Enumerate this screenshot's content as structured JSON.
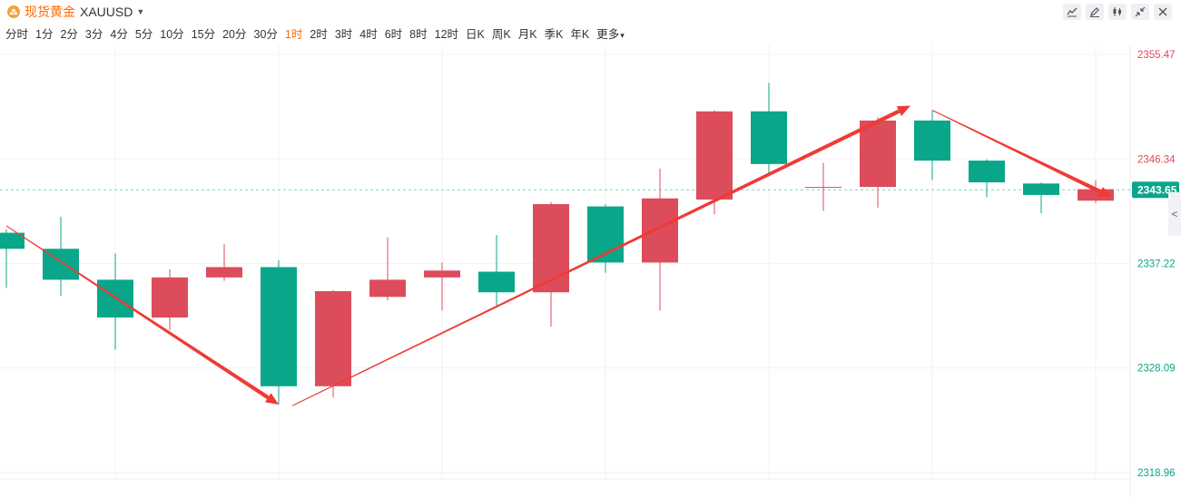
{
  "symbol": {
    "name": "现货黄金",
    "code": "XAUUSD",
    "icon": "gold-coin-icon",
    "dropdown_icon": "caret-down-icon"
  },
  "intervals": [
    "分时",
    "1分",
    "2分",
    "3分",
    "4分",
    "5分",
    "10分",
    "15分",
    "20分",
    "30分",
    "1时",
    "2时",
    "3时",
    "4时",
    "6时",
    "8时",
    "12时",
    "日K",
    "周K",
    "月K",
    "季K",
    "年K",
    "更多"
  ],
  "active_interval": "1时",
  "toolbar": [
    "line-chart-icon",
    "draw-pen-icon",
    "candlestick-icon",
    "collapse-icon",
    "close-icon"
  ],
  "colors": {
    "up": "#dc4c5a",
    "down": "#0aa68a",
    "arrow": "#f03a35",
    "accent": "#ff6a00",
    "last_price_bg": "#0aa68a"
  },
  "chart_data": {
    "type": "candlestick",
    "y_axis_ticks": [
      "2355.47",
      "2346.34",
      "2337.22",
      "2328.09",
      "2318.96"
    ],
    "ylim": [
      2318.96,
      2355.47
    ],
    "last_price": "2343.65",
    "candles": [
      {
        "open": 2339.9,
        "close": 2338.5,
        "high": 2340.2,
        "low": 2335.1
      },
      {
        "open": 2338.5,
        "close": 2335.8,
        "high": 2341.3,
        "low": 2334.4
      },
      {
        "open": 2335.8,
        "close": 2332.5,
        "high": 2338.1,
        "low": 2329.7
      },
      {
        "open": 2332.5,
        "close": 2336.0,
        "high": 2336.7,
        "low": 2331.4
      },
      {
        "open": 2336.0,
        "close": 2336.9,
        "high": 2338.9,
        "low": 2335.7
      },
      {
        "open": 2336.9,
        "close": 2326.5,
        "high": 2337.5,
        "low": 2324.9
      },
      {
        "open": 2326.5,
        "close": 2334.8,
        "high": 2334.9,
        "low": 2325.5
      },
      {
        "open": 2334.3,
        "close": 2335.8,
        "high": 2339.5,
        "low": 2334.0
      },
      {
        "open": 2336.0,
        "close": 2336.6,
        "high": 2337.3,
        "low": 2333.1
      },
      {
        "open": 2336.5,
        "close": 2334.7,
        "high": 2339.7,
        "low": 2333.4
      },
      {
        "open": 2334.7,
        "close": 2342.4,
        "high": 2342.6,
        "low": 2331.7
      },
      {
        "open": 2342.2,
        "close": 2337.3,
        "high": 2342.4,
        "low": 2336.4
      },
      {
        "open": 2337.3,
        "close": 2342.9,
        "high": 2345.5,
        "low": 2333.1
      },
      {
        "open": 2342.8,
        "close": 2350.5,
        "high": 2350.6,
        "low": 2341.5
      },
      {
        "open": 2350.5,
        "close": 2345.9,
        "high": 2353.0,
        "low": 2344.8
      },
      {
        "open": 2343.9,
        "close": 2343.9,
        "high": 2346.0,
        "low": 2341.8
      },
      {
        "open": 2343.9,
        "close": 2349.7,
        "high": 2350.0,
        "low": 2342.1
      },
      {
        "open": 2349.7,
        "close": 2346.2,
        "high": 2350.6,
        "low": 2344.5
      },
      {
        "open": 2346.2,
        "close": 2344.3,
        "high": 2346.3,
        "low": 2343.0
      },
      {
        "open": 2344.2,
        "close": 2343.2,
        "high": 2344.3,
        "low": 2341.6
      },
      {
        "open": 2342.7,
        "close": 2343.7,
        "high": 2344.5,
        "low": 2342.5
      }
    ],
    "trend_arrows": [
      {
        "from": {
          "candle": 0,
          "price": 2340.5
        },
        "to": {
          "candle": 5,
          "price": 2324.9
        }
      },
      {
        "from": {
          "candle": 5.25,
          "price": 2324.8
        },
        "to": {
          "candle": 16.6,
          "price": 2351.0
        }
      },
      {
        "from": {
          "candle": 17,
          "price": 2350.6
        },
        "to": {
          "candle": 20.3,
          "price": 2343.0
        }
      }
    ],
    "grid": true
  }
}
